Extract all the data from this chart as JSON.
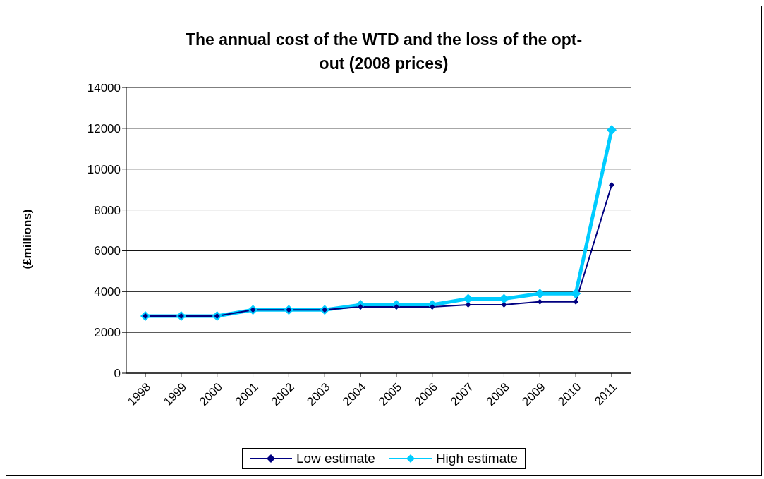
{
  "chart_data": {
    "type": "line",
    "title": "The annual cost of the WTD and the loss of the opt-out (2008 prices)",
    "ylabel": "(£millions)",
    "categories": [
      "1998",
      "1999",
      "2000",
      "2001",
      "2002",
      "2003",
      "2004",
      "2005",
      "2006",
      "2007",
      "2008",
      "2009",
      "2010",
      "2011"
    ],
    "series": [
      {
        "name": "Low estimate",
        "color": "#000080",
        "values": [
          2800,
          2800,
          2800,
          3100,
          3100,
          3100,
          3250,
          3250,
          3250,
          3350,
          3350,
          3500,
          3500,
          9220
        ]
      },
      {
        "name": "High estimate",
        "color": "#00ccff",
        "values": [
          2800,
          2800,
          2800,
          3100,
          3100,
          3100,
          3350,
          3350,
          3350,
          3650,
          3650,
          3900,
          3900,
          11920
        ]
      }
    ],
    "ylim": [
      0,
      14000
    ],
    "yticks": [
      0,
      2000,
      4000,
      6000,
      8000,
      10000,
      12000,
      14000
    ],
    "grid": "y",
    "legend": "bottom",
    "marker": "diamond",
    "line_style": "solid"
  }
}
